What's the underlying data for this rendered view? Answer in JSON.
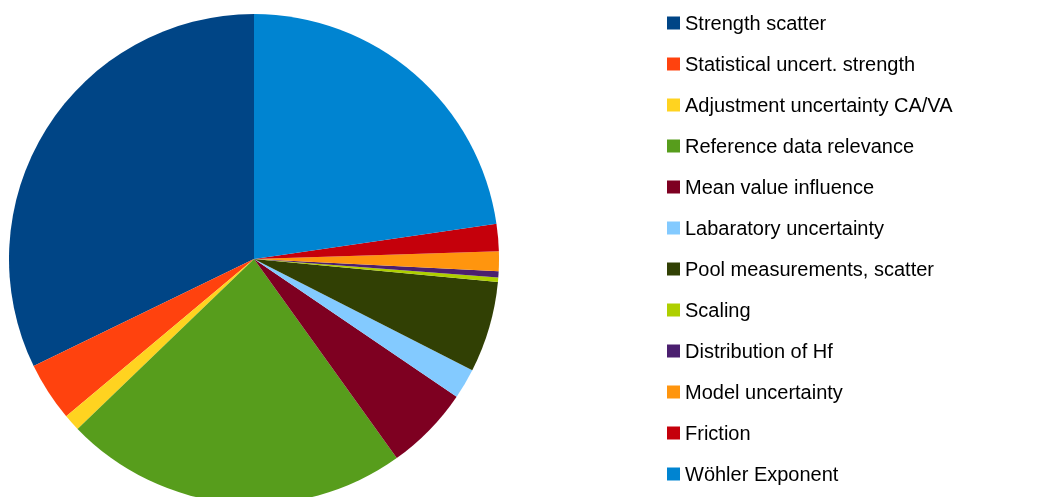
{
  "chart_data": {
    "type": "pie",
    "categories": [
      "Strength scatter",
      "Statistical uncert. strength",
      "Adjustment uncertainty CA/VA",
      "Reference data relevance",
      "Mean value influence",
      "Labaratory uncertainty",
      "Pool measurements, scatter",
      "Scaling",
      "Distribution of Hf",
      "Model uncertainty",
      "Friction",
      "Wöhler Exponent"
    ],
    "values": [
      32.2,
      3.9,
      1.1,
      22.7,
      5.6,
      2.0,
      6.0,
      0.3,
      0.4,
      1.3,
      1.8,
      22.7
    ],
    "colors": [
      "#004586",
      "#ff420e",
      "#ffd320",
      "#579d1c",
      "#7e0021",
      "#83caff",
      "#314004",
      "#aecf00",
      "#4b1f6f",
      "#ff950e",
      "#c5000b",
      "#0084d1"
    ],
    "legend": "right"
  }
}
